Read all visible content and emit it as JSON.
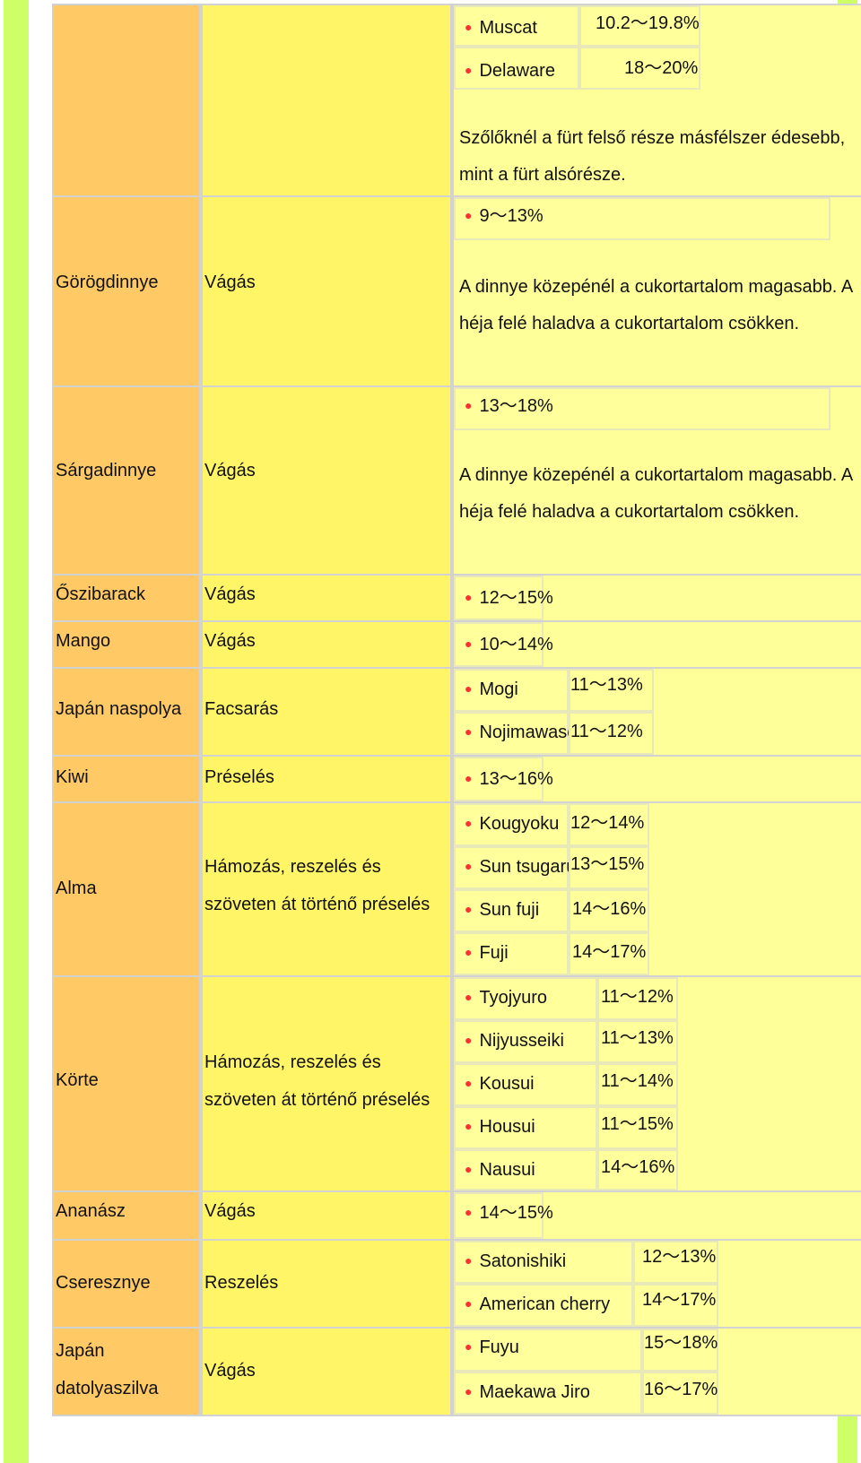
{
  "rows": {
    "r0": {
      "fruit": "",
      "method": "",
      "varieties": [
        {
          "name": "Muscat",
          "value": "10.2～19.8%"
        },
        {
          "name": "Delaware",
          "value": "18～20%"
        }
      ],
      "note": "Szőlőknél a fürt felső része másfélszer édesebb, mint a fürt alsórésze."
    },
    "r1": {
      "fruit": "Görögdinnye",
      "method": "Vágás",
      "value": "9～13%",
      "note": "A dinnye közepénél a cukortartalom magasabb. A héja felé haladva a cukortartalom csökken."
    },
    "r2": {
      "fruit": "Sárgadinnye",
      "method": "Vágás",
      "value": "13～18%",
      "note": "A dinnye közepénél a cukortartalom magasabb. A héja felé haladva a cukortartalom csökken."
    },
    "r3": {
      "fruit": "Őszibarack",
      "method": "Vágás",
      "value": "12～15%"
    },
    "r4": {
      "fruit": "Mango",
      "method": "Vágás",
      "value": "10～14%"
    },
    "r5": {
      "fruit": "Japán naspolya",
      "method": "Facsarás",
      "varieties": [
        {
          "name": "Mogi",
          "value": "11～13%"
        },
        {
          "name": "Nojimawase",
          "value": "11～12%"
        }
      ]
    },
    "r6": {
      "fruit": "Kiwi",
      "method": "Préselés",
      "value": "13～16%"
    },
    "r7": {
      "fruit": "Alma",
      "method_line1": "Hámozás, reszelés és",
      "method_line2": "szöveten át történő préselés",
      "varieties": [
        {
          "name": "Kougyoku",
          "value": "12～14%"
        },
        {
          "name": "Sun tsugaru",
          "value": "13～15%"
        },
        {
          "name": "Sun fuji",
          "value": "14～16%"
        },
        {
          "name": "Fuji",
          "value": "14～17%"
        }
      ]
    },
    "r8": {
      "fruit": "Körte",
      "method_line1": "Hámozás, reszelés és",
      "method_line2": "szöveten át történő préselés",
      "varieties": [
        {
          "name": "Tyojyuro",
          "value": "11～12%"
        },
        {
          "name": "Nijyusseiki",
          "value": "11～13%"
        },
        {
          "name": "Kousui",
          "value": "11～14%"
        },
        {
          "name": "Housui",
          "value": "11～15%"
        },
        {
          "name": "Nausui",
          "value": "14～16%"
        }
      ]
    },
    "r9": {
      "fruit": "Ananász",
      "method": "Vágás",
      "value": "14～15%"
    },
    "r10": {
      "fruit": "Cseresznye",
      "method": "Reszelés",
      "varieties": [
        {
          "name": "Satonishiki",
          "value": "12～13%"
        },
        {
          "name": "American cherry",
          "value": "14～17%"
        }
      ]
    },
    "r11": {
      "fruit_line1": "Japán",
      "fruit_line2": "datolyaszilva",
      "method": "Vágás",
      "varieties": [
        {
          "name": "Fuyu",
          "value": "15～18%"
        },
        {
          "name": "Maekawa Jiro",
          "value": "16～17%"
        }
      ]
    }
  },
  "colors": {
    "fruit_column": "#ffc966",
    "method_column": "#fff566",
    "sugar_column": "#ffff99",
    "side_band": "#cfff66",
    "bullet": "#ff3030"
  }
}
